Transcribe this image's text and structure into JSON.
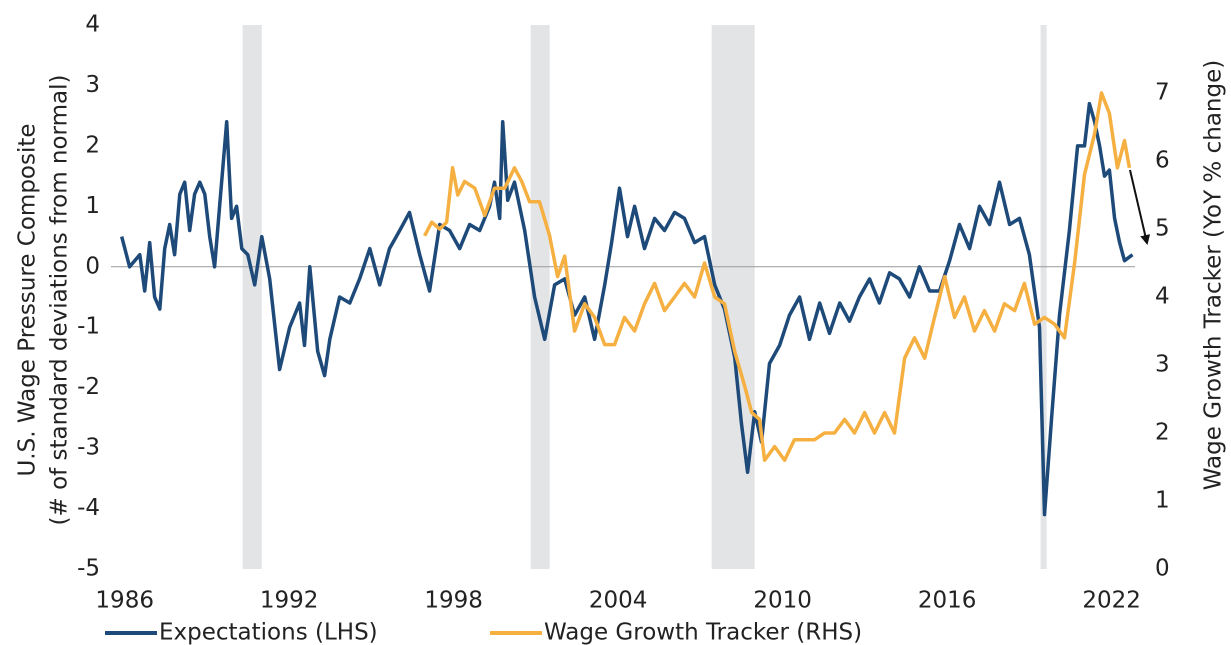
{
  "chart_data": {
    "type": "line",
    "ylabel": [
      "U.S. Wage Pressure Composite",
      "(# of standard deviations from normal)"
    ],
    "y2label": "Wage Growth Tracker (YoY % change)",
    "xlim": [
      1985.5,
      2023.4
    ],
    "xticks": [
      1986,
      1992,
      1998,
      2004,
      2010,
      2016,
      2022
    ],
    "ylim": [
      -5,
      4
    ],
    "yticks": [
      -5,
      -4,
      -3,
      -2,
      -1,
      0,
      1,
      2,
      3,
      4
    ],
    "y2lim": [
      0,
      8
    ],
    "y2ticks": [
      0,
      1,
      2,
      3,
      4,
      5,
      6,
      7
    ],
    "recessions": [
      [
        1990.3,
        1991.0
      ],
      [
        2000.81,
        2001.5
      ],
      [
        2007.41,
        2008.98
      ],
      [
        2019.41,
        2019.63
      ]
    ],
    "recession_color": "#e3e4e6",
    "series": [
      {
        "name": "Expectations (LHS)",
        "color": "#1e4a7a",
        "x": [
          1985.89,
          1986.18,
          1986.55,
          1986.73,
          1986.91,
          1987.09,
          1987.28,
          1987.46,
          1987.64,
          1987.82,
          1988.01,
          1988.19,
          1988.37,
          1988.55,
          1988.74,
          1988.92,
          1989.1,
          1989.28,
          1989.46,
          1989.72,
          1989.9,
          1990.08,
          1990.27,
          1990.49,
          1990.74,
          1991.0,
          1991.29,
          1991.65,
          1992.02,
          1992.38,
          1992.56,
          1992.75,
          1993.04,
          1993.29,
          1993.48,
          1993.84,
          1994.21,
          1994.57,
          1994.94,
          1995.3,
          1995.66,
          1996.03,
          1996.39,
          1996.76,
          1997.12,
          1997.49,
          1997.85,
          1998.22,
          1998.58,
          1998.95,
          1999.31,
          1999.49,
          1999.68,
          1999.79,
          1999.97,
          2000.22,
          2000.59,
          2000.95,
          2001.32,
          2001.68,
          2002.05,
          2002.41,
          2002.78,
          2003.14,
          2003.51,
          2003.76,
          2004.05,
          2004.34,
          2004.6,
          2004.96,
          2005.33,
          2005.69,
          2006.06,
          2006.42,
          2006.79,
          2007.15,
          2007.52,
          2007.88,
          2008.25,
          2008.5,
          2008.72,
          2008.98,
          2009.23,
          2009.52,
          2009.89,
          2010.25,
          2010.62,
          2010.98,
          2011.35,
          2011.71,
          2012.08,
          2012.44,
          2012.8,
          2013.17,
          2013.53,
          2013.9,
          2014.26,
          2014.63,
          2014.99,
          2015.36,
          2015.72,
          2016.09,
          2016.45,
          2016.82,
          2017.18,
          2017.55,
          2017.91,
          2018.28,
          2018.64,
          2019.0,
          2019.37,
          2019.55,
          2019.81,
          2020.1,
          2020.46,
          2020.76,
          2021.01,
          2021.19,
          2021.38,
          2021.56,
          2021.74,
          2021.92,
          2022.11,
          2022.29,
          2022.47,
          2022.76
        ],
        "values": [
          0.5,
          0.0,
          0.2,
          -0.4,
          0.4,
          -0.5,
          -0.7,
          0.3,
          0.7,
          0.2,
          1.2,
          1.4,
          0.6,
          1.2,
          1.4,
          1.2,
          0.5,
          0.0,
          1.0,
          2.4,
          0.8,
          1.0,
          0.3,
          0.2,
          -0.3,
          0.5,
          -0.2,
          -1.7,
          -1.0,
          -0.6,
          -1.3,
          0.0,
          -1.4,
          -1.8,
          -1.2,
          -0.5,
          -0.6,
          -0.2,
          0.3,
          -0.3,
          0.3,
          0.6,
          0.9,
          0.2,
          -0.4,
          0.7,
          0.6,
          0.3,
          0.7,
          0.6,
          1.0,
          1.4,
          0.8,
          2.4,
          1.1,
          1.4,
          0.6,
          -0.5,
          -1.2,
          -0.3,
          -0.2,
          -0.8,
          -0.5,
          -1.2,
          -0.3,
          0.4,
          1.3,
          0.5,
          1.0,
          0.3,
          0.8,
          0.6,
          0.9,
          0.8,
          0.4,
          0.5,
          -0.3,
          -0.7,
          -1.5,
          -2.6,
          -3.4,
          -2.4,
          -2.9,
          -1.6,
          -1.3,
          -0.8,
          -0.5,
          -1.2,
          -0.6,
          -1.1,
          -0.6,
          -0.9,
          -0.5,
          -0.2,
          -0.6,
          -0.1,
          -0.2,
          -0.5,
          0.0,
          -0.4,
          -0.4,
          0.1,
          0.7,
          0.3,
          1.0,
          0.7,
          1.4,
          0.7,
          0.8,
          0.2,
          -1.0,
          -4.1,
          -2.5,
          -0.8,
          0.6,
          2.0,
          2.0,
          2.7,
          2.4,
          2.0,
          1.5,
          1.6,
          0.8,
          0.4,
          0.1,
          0.2
        ]
      },
      {
        "name": "Wage Growth Tracker (RHS)",
        "color": "#f5b041",
        "axis": "y2",
        "x": [
          1996.94,
          1997.2,
          1997.49,
          1997.74,
          1997.96,
          1998.15,
          1998.4,
          1998.77,
          1999.13,
          1999.49,
          1999.86,
          2000.22,
          2000.48,
          2000.77,
          2001.13,
          2001.5,
          2001.79,
          2002.05,
          2002.41,
          2002.78,
          2003.14,
          2003.51,
          2003.87,
          2004.23,
          2004.6,
          2004.96,
          2005.33,
          2005.69,
          2006.06,
          2006.42,
          2006.79,
          2007.15,
          2007.52,
          2007.88,
          2008.25,
          2008.61,
          2008.87,
          2009.16,
          2009.34,
          2009.71,
          2010.07,
          2010.43,
          2010.8,
          2011.16,
          2011.53,
          2011.89,
          2012.26,
          2012.62,
          2012.99,
          2013.35,
          2013.72,
          2014.08,
          2014.45,
          2014.81,
          2015.18,
          2015.54,
          2015.91,
          2016.27,
          2016.63,
          2017.0,
          2017.36,
          2017.73,
          2018.09,
          2018.46,
          2018.82,
          2019.19,
          2019.55,
          2019.92,
          2020.28,
          2020.65,
          2021.01,
          2021.38,
          2021.63,
          2021.92,
          2022.21,
          2022.47,
          2022.65
        ],
        "values": [
          4.9,
          5.1,
          5.0,
          5.1,
          5.9,
          5.5,
          5.7,
          5.6,
          5.2,
          5.6,
          5.6,
          5.9,
          5.7,
          5.4,
          5.4,
          4.9,
          4.3,
          4.6,
          3.5,
          3.9,
          3.7,
          3.3,
          3.3,
          3.7,
          3.5,
          3.9,
          4.2,
          3.8,
          4.0,
          4.2,
          4.0,
          4.5,
          4.0,
          3.9,
          3.2,
          2.7,
          2.3,
          2.2,
          1.6,
          1.8,
          1.6,
          1.9,
          1.9,
          1.9,
          2.0,
          2.0,
          2.2,
          2.0,
          2.3,
          2.0,
          2.3,
          2.0,
          3.1,
          3.4,
          3.1,
          3.7,
          4.3,
          3.7,
          4.0,
          3.5,
          3.8,
          3.5,
          3.9,
          3.8,
          4.2,
          3.6,
          3.7,
          3.6,
          3.4,
          4.5,
          5.8,
          6.4,
          7.0,
          6.7,
          5.9,
          6.3,
          5.9
        ]
      }
    ]
  }
}
